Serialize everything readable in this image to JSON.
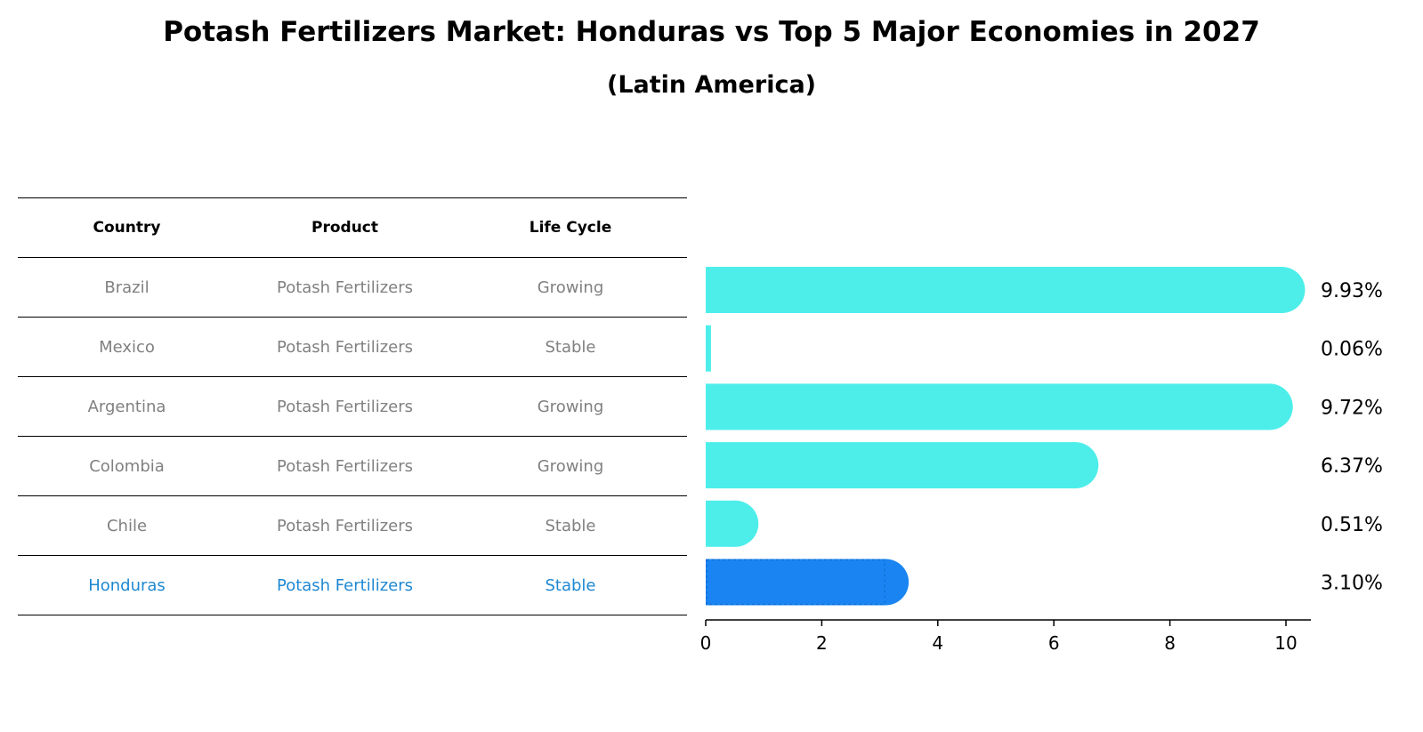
{
  "title": "Potash Fertilizers Market: Honduras vs Top 5 Major Economies in 2027",
  "subtitle": "(Latin America)",
  "table": {
    "headers": [
      "Country",
      "Product",
      "Life Cycle"
    ],
    "rows": [
      {
        "country": "Brazil",
        "product": "Potash Fertilizers",
        "life_cycle": "Growing"
      },
      {
        "country": "Mexico",
        "product": "Potash Fertilizers",
        "life_cycle": "Stable"
      },
      {
        "country": "Argentina",
        "product": "Potash Fertilizers",
        "life_cycle": "Growing"
      },
      {
        "country": "Colombia",
        "product": "Potash Fertilizers",
        "life_cycle": "Growing"
      },
      {
        "country": "Chile",
        "product": "Potash Fertilizers",
        "life_cycle": "Stable"
      },
      {
        "country": "Honduras",
        "product": "Potash Fertilizers",
        "life_cycle": "Stable"
      }
    ]
  },
  "chart_data": {
    "type": "bar",
    "orientation": "horizontal",
    "title": "Potash Fertilizers Market: Honduras vs Top 5 Major Economies in 2027",
    "subtitle": "(Latin America)",
    "categories": [
      "Brazil",
      "Mexico",
      "Argentina",
      "Colombia",
      "Chile",
      "Honduras"
    ],
    "values": [
      9.93,
      0.06,
      9.72,
      6.37,
      0.51,
      3.1
    ],
    "value_labels": [
      "9.93%",
      "0.06%",
      "9.72%",
      "6.37%",
      "0.51%",
      "3.10%"
    ],
    "highlight": "Honduras",
    "xlim": [
      0,
      10.43
    ],
    "xticks": [
      0,
      2,
      4,
      6,
      8,
      10
    ],
    "xlabel": "",
    "ylabel": "",
    "grid": false,
    "colors": {
      "default": "#4deeea",
      "highlight": "#1a85f2",
      "highlight_text": "#1e88d2",
      "muted_text": "#808080"
    }
  }
}
